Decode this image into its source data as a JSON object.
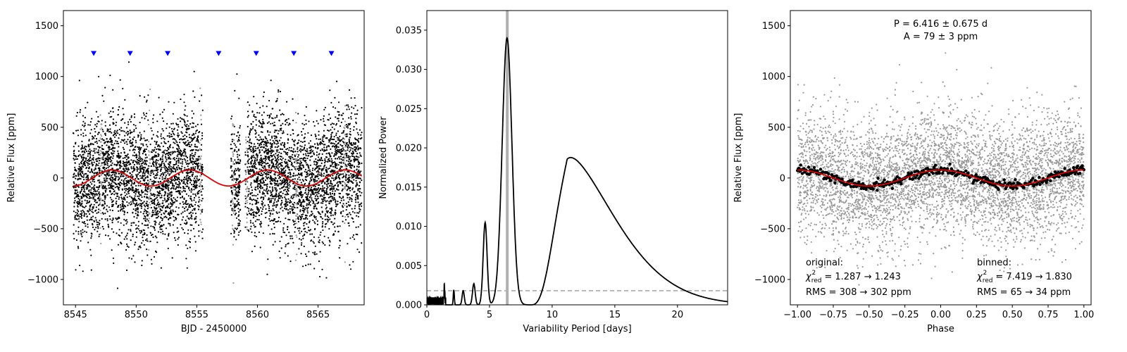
{
  "chart_data": [
    {
      "type": "scatter",
      "panel": "light-curve",
      "xlabel": "BJD - 2450000",
      "ylabel": "Relative Flux [ppm]",
      "xlim": [
        8544,
        8568.8
      ],
      "ylim": [
        -1250,
        1650
      ],
      "xticks": [
        8545,
        8550,
        8555,
        8560,
        8565
      ],
      "yticks": [
        -1000,
        -500,
        0,
        500,
        1000,
        1500
      ],
      "data_segments": [
        [
          8544.8,
          8555.5
        ],
        [
          8557.8,
          8558.6
        ],
        [
          8559.0,
          8568.6
        ]
      ],
      "point_scatter_ppm": 300,
      "model_amplitude_ppm": 79,
      "model_period_days": 6.416,
      "model_phase_peak_bjd": 8548.0,
      "model_color": "#e00000",
      "point_color": "#000000",
      "flagged_point_color": "#999999",
      "flagged_times": [
        8547.1,
        8551.1,
        8555.3,
        8558.0,
        8559.1,
        8563.2,
        8567.2
      ],
      "transit_markers_x": [
        8546.5,
        8549.5,
        8552.6,
        8556.8,
        8559.9,
        8563.0,
        8566.1
      ],
      "transit_marker_y": 1230,
      "transit_marker_color": "#0000ff"
    },
    {
      "type": "line",
      "panel": "periodogram",
      "xlabel": "Variability Period [days]",
      "ylabel": "Normalized Power",
      "xlim": [
        0,
        24
      ],
      "ylim": [
        0,
        0.0375
      ],
      "xticks": [
        0,
        5,
        10,
        15,
        20
      ],
      "xtick_labels": [
        "0",
        "5",
        "10",
        "15",
        "20"
      ],
      "yticks": [
        0,
        0.005,
        0.01,
        0.015,
        0.02,
        0.025,
        0.03,
        0.035
      ],
      "ytick_labels": [
        "0.000",
        "0.005",
        "0.010",
        "0.015",
        "0.020",
        "0.025",
        "0.030",
        "0.035"
      ],
      "peaks": [
        {
          "period": 6.4,
          "power": 0.034
        },
        {
          "period": 11.2,
          "power": 0.0193
        },
        {
          "period": 4.65,
          "power": 0.0105
        },
        {
          "period": 3.75,
          "power": 0.0027
        },
        {
          "period": 2.9,
          "power": 0.0018
        },
        {
          "period": 2.15,
          "power": 0.0019
        },
        {
          "period": 1.4,
          "power": 0.0019
        }
      ],
      "best_period_line_x": 6.416,
      "best_period_line_color": "#b0b0b0",
      "threshold_y": 0.0018,
      "threshold_color": "#999999",
      "curve_color": "#000000"
    },
    {
      "type": "scatter",
      "panel": "phase-folded",
      "xlabel": "Phase",
      "ylabel": "Relative Flux [ppm]",
      "xlim": [
        -1.05,
        1.05
      ],
      "ylim": [
        -1250,
        1650
      ],
      "xticks": [
        -1.0,
        -0.75,
        -0.5,
        -0.25,
        0.0,
        0.25,
        0.5,
        0.75,
        1.0
      ],
      "xtick_labels": [
        "−1.00",
        "−0.75",
        "−0.50",
        "−0.25",
        "0.00",
        "0.25",
        "0.50",
        "0.75",
        "1.00"
      ],
      "yticks": [
        -1000,
        -500,
        0,
        500,
        1000,
        1500
      ],
      "ytick_labels": [
        "−1000",
        "−500",
        "0",
        "500",
        "1000",
        "1500"
      ],
      "raw_point_color": "#999999",
      "binned_point_color": "#000000",
      "model_color": "#e00000",
      "model_amplitude_ppm": 79,
      "annotations": {
        "period": "P = 6.416 ± 0.675 d",
        "amplitude": "A = 79 ± 3 ppm",
        "original_title": "original:",
        "original_chi_prefix": "χ",
        "original_chi_sub": "red",
        "original_chi_sup": "2",
        "original_chi_value": " = 1.287 → 1.243",
        "original_rms": "RMS = 308 → 302 ppm",
        "binned_title": "binned:",
        "binned_chi_prefix": "χ",
        "binned_chi_sub": "red",
        "binned_chi_sup": "2",
        "binned_chi_value": " = 7.419 → 1.830",
        "binned_rms": "RMS = 65 → 34 ppm"
      }
    }
  ],
  "lc_tick_labels": {
    "x": [
      "8545",
      "8550",
      "8555",
      "8560",
      "8565"
    ],
    "y": [
      "−1000",
      "−500",
      "0",
      "500",
      "1000",
      "1500"
    ]
  }
}
